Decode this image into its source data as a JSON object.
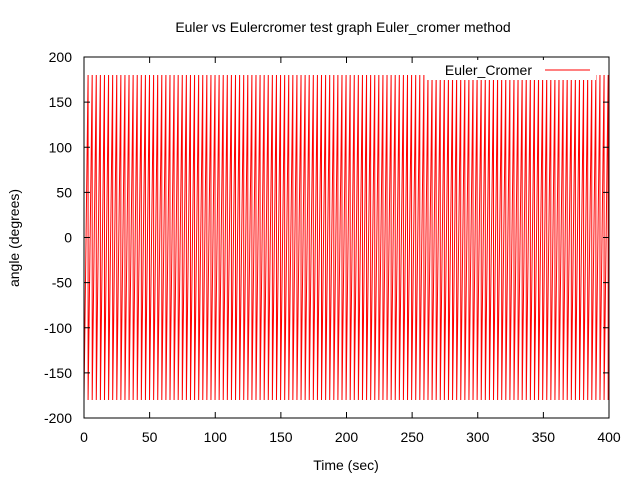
{
  "chart_data": {
    "type": "line",
    "title": "Euler vs Eulercromer test graph Euler_cromer method",
    "xlabel": "Time (sec)",
    "ylabel": "angle (degrees)",
    "xlim": [
      0,
      400
    ],
    "ylim": [
      -200,
      200
    ],
    "xticks": [
      0,
      50,
      100,
      150,
      200,
      250,
      300,
      350,
      400
    ],
    "yticks": [
      -200,
      -150,
      -100,
      -50,
      0,
      50,
      100,
      150,
      200
    ],
    "grid": false,
    "legend_position": "top-right",
    "series": [
      {
        "name": "Euler_Cromer",
        "color": "#ff0000",
        "waveform": "sawtooth",
        "amplitude": 180,
        "period": 3.12,
        "t_start": 0,
        "t_end": 400
      }
    ]
  }
}
